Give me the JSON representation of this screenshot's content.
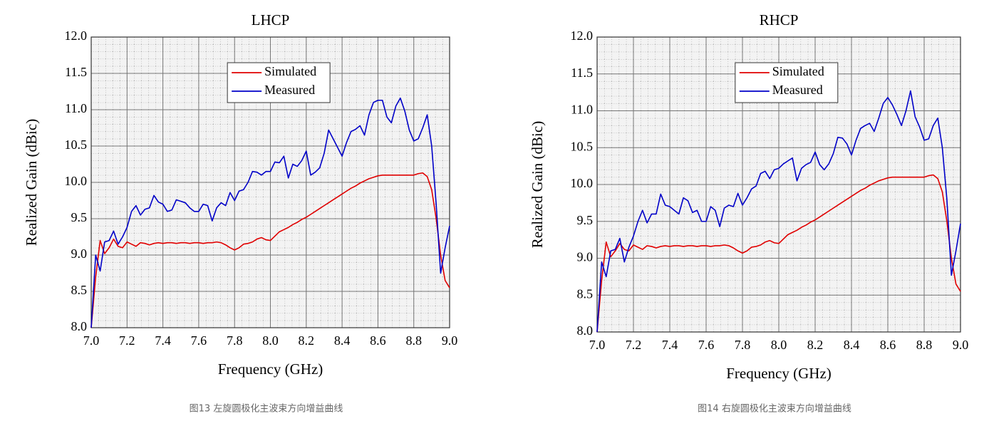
{
  "chart_data": [
    {
      "type": "line",
      "title": "LHCP",
      "xlabel": "Frequency (GHz)",
      "ylabel": "Realized Gain (dBic)",
      "caption": "图13 左旋圆极化主波束方向增益曲线",
      "legend": "upper center",
      "grid": true,
      "xlim": [
        7.0,
        9.0
      ],
      "xticks": [
        {
          "value": 7.0,
          "label": "7.0"
        },
        7.2,
        7.4,
        7.6,
        7.8,
        {
          "value": 8.0,
          "label": "8.0"
        },
        8.2,
        8.4,
        8.6,
        8.8,
        {
          "value": 9.0,
          "label": "9.0"
        }
      ],
      "ylim": [
        8.0,
        12.0
      ],
      "yticks": [
        {
          "value": 8.0,
          "label": "8.0"
        },
        8.5,
        {
          "value": 9.0,
          "label": "9.0"
        },
        9.5,
        {
          "value": 10.0,
          "label": "10.0"
        },
        10.5,
        {
          "value": 11.0,
          "label": "11.0"
        },
        11.5,
        {
          "value": 12.0,
          "label": "12.0"
        }
      ],
      "x": [
        7.0,
        7.025,
        7.05,
        7.075,
        7.1,
        7.125,
        7.15,
        7.175,
        7.2,
        7.225,
        7.25,
        7.275,
        7.3,
        7.325,
        7.35,
        7.375,
        7.4,
        7.425,
        7.45,
        7.475,
        7.5,
        7.525,
        7.55,
        7.575,
        7.6,
        7.625,
        7.65,
        7.675,
        7.7,
        7.725,
        7.75,
        7.775,
        7.8,
        7.825,
        7.85,
        7.875,
        7.9,
        7.925,
        7.95,
        7.975,
        8.0,
        8.025,
        8.05,
        8.075,
        8.1,
        8.125,
        8.15,
        8.175,
        8.2,
        8.225,
        8.25,
        8.275,
        8.3,
        8.325,
        8.35,
        8.375,
        8.4,
        8.425,
        8.45,
        8.475,
        8.5,
        8.525,
        8.55,
        8.575,
        8.6,
        8.625,
        8.65,
        8.675,
        8.7,
        8.725,
        8.75,
        8.775,
        8.8,
        8.825,
        8.85,
        8.875,
        8.9,
        8.925,
        8.95,
        8.975,
        9.0
      ],
      "series": [
        {
          "name": "Simulated",
          "color": "#e00000",
          "values": [
            8.0,
            8.7,
            9.2,
            9.02,
            9.1,
            9.22,
            9.12,
            9.1,
            9.18,
            9.15,
            9.12,
            9.17,
            9.16,
            9.14,
            9.16,
            9.17,
            9.16,
            9.17,
            9.17,
            9.16,
            9.17,
            9.17,
            9.16,
            9.17,
            9.17,
            9.16,
            9.17,
            9.17,
            9.18,
            9.17,
            9.14,
            9.1,
            9.07,
            9.1,
            9.15,
            9.16,
            9.18,
            9.22,
            9.24,
            9.21,
            9.2,
            9.26,
            9.32,
            9.35,
            9.38,
            9.42,
            9.45,
            9.49,
            9.52,
            9.56,
            9.6,
            9.64,
            9.68,
            9.72,
            9.76,
            9.8,
            9.84,
            9.88,
            9.92,
            9.95,
            9.99,
            10.02,
            10.05,
            10.07,
            10.09,
            10.1,
            10.1,
            10.1,
            10.1,
            10.1,
            10.1,
            10.1,
            10.1,
            10.12,
            10.13,
            10.08,
            9.9,
            9.5,
            9.0,
            8.65,
            8.55
          ]
        },
        {
          "name": "Measured",
          "color": "#0000c8",
          "values": [
            8.0,
            9.0,
            8.78,
            9.18,
            9.2,
            9.33,
            9.15,
            9.25,
            9.38,
            9.6,
            9.68,
            9.55,
            9.63,
            9.65,
            9.82,
            9.73,
            9.7,
            9.6,
            9.62,
            9.76,
            9.74,
            9.72,
            9.65,
            9.6,
            9.6,
            9.7,
            9.68,
            9.47,
            9.65,
            9.72,
            9.68,
            9.86,
            9.75,
            9.88,
            9.9,
            10.0,
            10.15,
            10.14,
            10.1,
            10.15,
            10.15,
            10.28,
            10.27,
            10.36,
            10.06,
            10.25,
            10.22,
            10.3,
            10.43,
            10.1,
            10.14,
            10.2,
            10.4,
            10.72,
            10.6,
            10.48,
            10.36,
            10.55,
            10.7,
            10.73,
            10.78,
            10.65,
            10.93,
            11.1,
            11.13,
            11.13,
            10.9,
            10.82,
            11.05,
            11.16,
            10.98,
            10.72,
            10.57,
            10.6,
            10.75,
            10.93,
            10.5,
            9.7,
            8.75,
            9.1,
            9.4
          ]
        }
      ]
    },
    {
      "type": "line",
      "title": "RHCP",
      "xlabel": "Frequency (GHz)",
      "ylabel": "Realized Gain (dBic)",
      "caption": "图14 右旋圆极化主波束方向增益曲线",
      "legend": "upper center",
      "grid": true,
      "xlim": [
        7.0,
        9.0
      ],
      "xticks": [
        {
          "value": 7.0,
          "label": "7.0"
        },
        7.2,
        7.4,
        7.6,
        7.8,
        {
          "value": 8.0,
          "label": "8.0"
        },
        8.2,
        8.4,
        8.6,
        8.8,
        {
          "value": 9.0,
          "label": "9.0"
        }
      ],
      "ylim": [
        8.0,
        12.0
      ],
      "yticks": [
        {
          "value": 8.0,
          "label": "8.0"
        },
        8.5,
        {
          "value": 9.0,
          "label": "9.0"
        },
        9.5,
        {
          "value": 10.0,
          "label": "10.0"
        },
        10.5,
        {
          "value": 11.0,
          "label": "11.0"
        },
        11.5,
        {
          "value": 12.0,
          "label": "12.0"
        }
      ],
      "x": [
        7.0,
        7.025,
        7.05,
        7.075,
        7.1,
        7.125,
        7.15,
        7.175,
        7.2,
        7.225,
        7.25,
        7.275,
        7.3,
        7.325,
        7.35,
        7.375,
        7.4,
        7.425,
        7.45,
        7.475,
        7.5,
        7.525,
        7.55,
        7.575,
        7.6,
        7.625,
        7.65,
        7.675,
        7.7,
        7.725,
        7.75,
        7.775,
        7.8,
        7.825,
        7.85,
        7.875,
        7.9,
        7.925,
        7.95,
        7.975,
        8.0,
        8.025,
        8.05,
        8.075,
        8.1,
        8.125,
        8.15,
        8.175,
        8.2,
        8.225,
        8.25,
        8.275,
        8.3,
        8.325,
        8.35,
        8.375,
        8.4,
        8.425,
        8.45,
        8.475,
        8.5,
        8.525,
        8.55,
        8.575,
        8.6,
        8.625,
        8.65,
        8.675,
        8.7,
        8.725,
        8.75,
        8.775,
        8.8,
        8.825,
        8.85,
        8.875,
        8.9,
        8.925,
        8.95,
        8.975,
        9.0
      ],
      "series": [
        {
          "name": "Simulated",
          "color": "#e00000",
          "values": [
            8.0,
            8.7,
            9.22,
            9.02,
            9.1,
            9.2,
            9.12,
            9.1,
            9.18,
            9.15,
            9.12,
            9.17,
            9.16,
            9.14,
            9.16,
            9.17,
            9.16,
            9.17,
            9.17,
            9.16,
            9.17,
            9.17,
            9.16,
            9.17,
            9.17,
            9.16,
            9.17,
            9.17,
            9.18,
            9.17,
            9.14,
            9.1,
            9.07,
            9.1,
            9.15,
            9.16,
            9.18,
            9.22,
            9.24,
            9.21,
            9.2,
            9.26,
            9.32,
            9.35,
            9.38,
            9.42,
            9.45,
            9.49,
            9.52,
            9.56,
            9.6,
            9.64,
            9.68,
            9.72,
            9.76,
            9.8,
            9.84,
            9.88,
            9.92,
            9.95,
            9.99,
            10.02,
            10.05,
            10.07,
            10.09,
            10.1,
            10.1,
            10.1,
            10.1,
            10.1,
            10.1,
            10.1,
            10.1,
            10.12,
            10.13,
            10.08,
            9.9,
            9.5,
            9.0,
            8.65,
            8.55
          ]
        },
        {
          "name": "Measured",
          "color": "#0000c8",
          "values": [
            8.0,
            8.95,
            8.75,
            9.1,
            9.12,
            9.27,
            8.95,
            9.15,
            9.3,
            9.5,
            9.65,
            9.48,
            9.6,
            9.6,
            9.87,
            9.72,
            9.7,
            9.65,
            9.6,
            9.82,
            9.78,
            9.62,
            9.65,
            9.5,
            9.5,
            9.7,
            9.65,
            9.43,
            9.68,
            9.72,
            9.7,
            9.88,
            9.72,
            9.82,
            9.94,
            9.98,
            10.15,
            10.18,
            10.08,
            10.2,
            10.22,
            10.28,
            10.32,
            10.36,
            10.05,
            10.22,
            10.27,
            10.3,
            10.44,
            10.27,
            10.2,
            10.28,
            10.42,
            10.64,
            10.63,
            10.55,
            10.4,
            10.6,
            10.76,
            10.8,
            10.83,
            10.72,
            10.9,
            11.1,
            11.18,
            11.08,
            10.95,
            10.8,
            11.0,
            11.27,
            10.92,
            10.78,
            10.6,
            10.62,
            10.8,
            10.9,
            10.5,
            9.8,
            8.77,
            9.1,
            9.47
          ]
        }
      ]
    }
  ]
}
